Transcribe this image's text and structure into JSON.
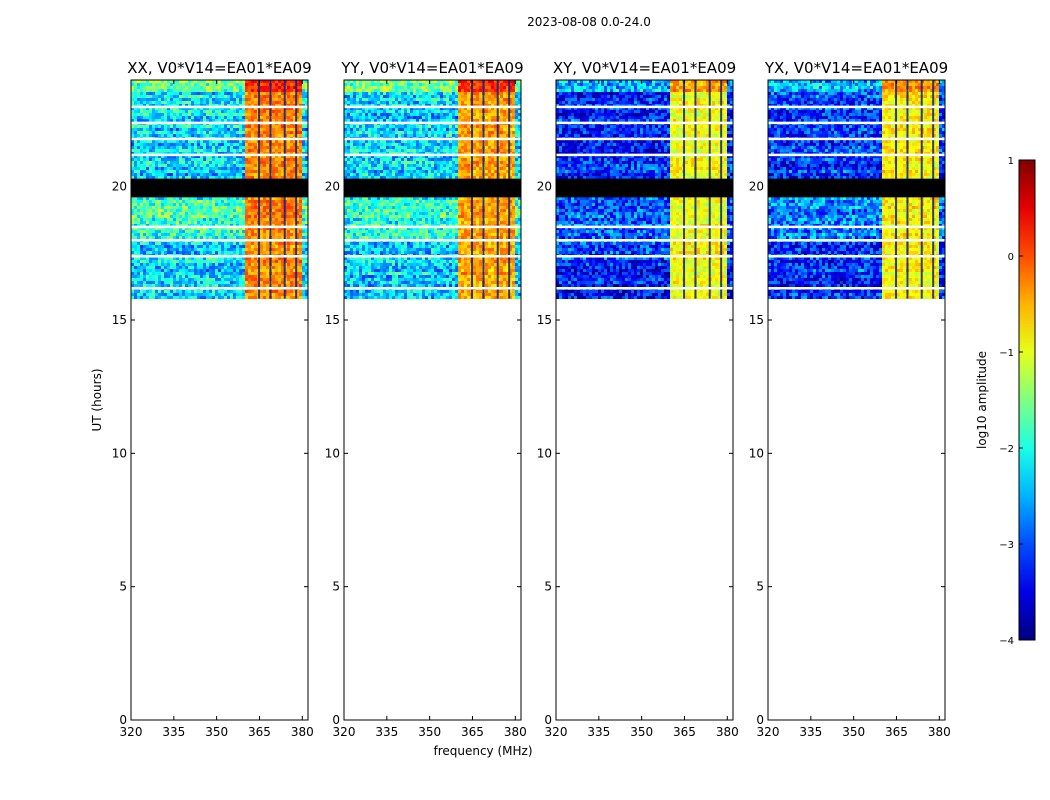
{
  "chart_data": {
    "type": "heatmap",
    "suptitle": "2023-08-08 0.0-24.0",
    "xlabel": "frequency (MHz)",
    "ylabel": "UT (hours)",
    "xlim": [
      320,
      382
    ],
    "ylim": [
      0,
      24
    ],
    "xticks": [
      "320",
      "335",
      "350",
      "365",
      "380"
    ],
    "yticks": [
      "0",
      "5",
      "10",
      "15",
      "20"
    ],
    "data_ut_range": [
      15.8,
      24.0
    ],
    "panels": [
      {
        "title": "XX, V0*V14=EA01*EA09",
        "polarization": "XX",
        "base_level": -2.3,
        "band_level": -0.3
      },
      {
        "title": "YY, V0*V14=EA01*EA09",
        "polarization": "YY",
        "base_level": -2.3,
        "band_level": -0.4
      },
      {
        "title": "XY, V0*V14=EA01*EA09",
        "polarization": "XY",
        "base_level": -3.2,
        "band_level": -0.9
      },
      {
        "title": "YX, V0*V14=EA01*EA09",
        "polarization": "YX",
        "base_level": -3.1,
        "band_level": -0.8
      }
    ],
    "rfi_band_mhz": [
      359.5,
      379.5
    ],
    "blank_ut_hours": [
      23.0,
      22.4,
      21.8,
      21.2,
      20.0,
      18.5,
      18.0,
      17.4,
      16.2
    ],
    "flagged_ut_range": [
      19.6,
      20.3
    ],
    "colorbar": {
      "label": "log10 amplitude",
      "range": [
        -4,
        1
      ],
      "ticks": [
        "1",
        "0",
        "−1",
        "−2",
        "−3",
        "−4"
      ],
      "colormap": "jet"
    }
  }
}
